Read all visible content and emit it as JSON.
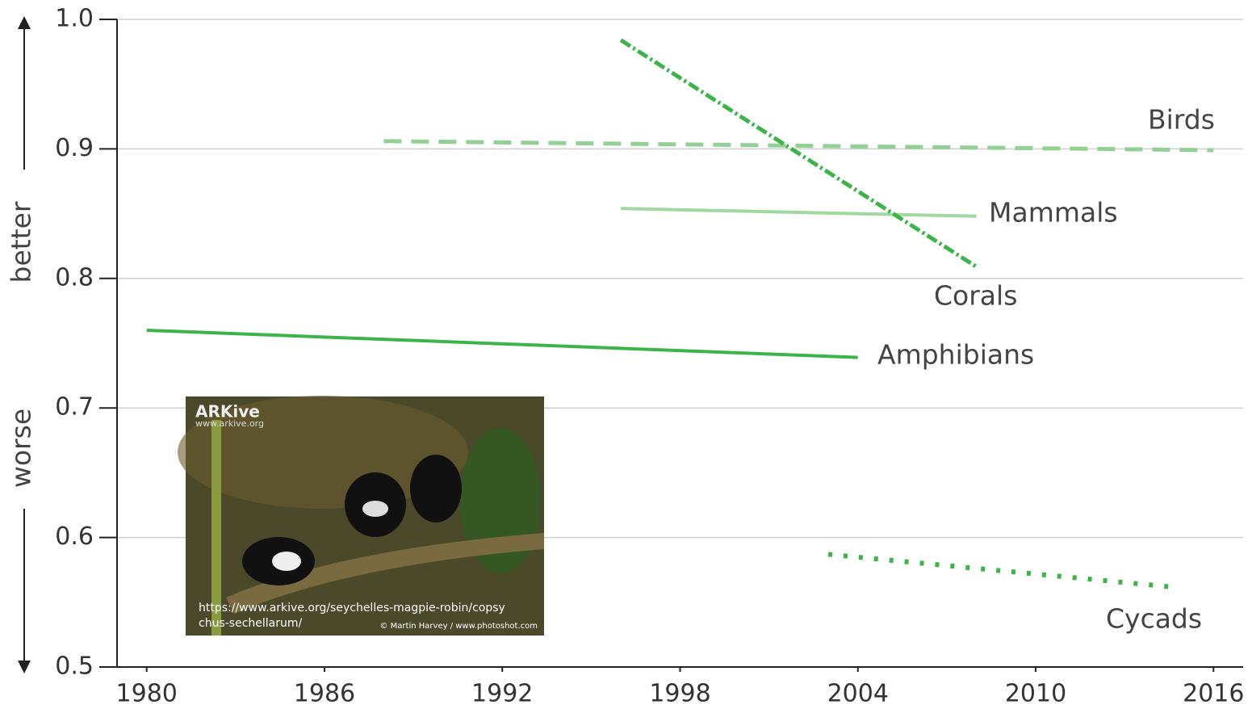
{
  "chart_data": {
    "type": "line",
    "xlim": [
      1979,
      2017
    ],
    "xticks": [
      1980,
      1986,
      1992,
      1998,
      2004,
      2010,
      2016
    ],
    "ylim": [
      0.5,
      1.0
    ],
    "yticks": [
      {
        "value": 0.5,
        "label": "0.5"
      },
      0.6,
      0.7,
      0.8,
      0.9,
      {
        "value": 1.0,
        "label": "1.0"
      }
    ],
    "grid": true,
    "axis_notes": {
      "up": "better",
      "down": "worse"
    },
    "series": [
      {
        "name": "Birds",
        "color": "#93d095",
        "style": "dashed",
        "x": [
          1988,
          2016
        ],
        "values": [
          0.906,
          0.899
        ]
      },
      {
        "name": "Mammals",
        "color": "#9fd8a0",
        "style": "solid",
        "x": [
          1996,
          2008
        ],
        "values": [
          0.854,
          0.848
        ]
      },
      {
        "name": "Corals",
        "color": "#3cb44a",
        "style": "dashdot",
        "x": [
          1996,
          2008
        ],
        "values": [
          0.984,
          0.809
        ]
      },
      {
        "name": "Amphibians",
        "color": "#3cb44a",
        "style": "solid",
        "x": [
          1980,
          2004
        ],
        "values": [
          0.76,
          0.739
        ]
      },
      {
        "name": "Cycads",
        "color": "#3cb44a",
        "style": "dotted",
        "x": [
          2003,
          2014.5
        ],
        "values": [
          0.587,
          0.562
        ]
      }
    ],
    "inset": {
      "brand": "ARKive",
      "site": "www.arkive.org",
      "url_line1": "https://www.arkive.org/seychelles-magpie-robin/copsy",
      "url_line2": "chus-sechellarum/",
      "credit": "© Martin Harvey / www.photoshot.com"
    }
  }
}
